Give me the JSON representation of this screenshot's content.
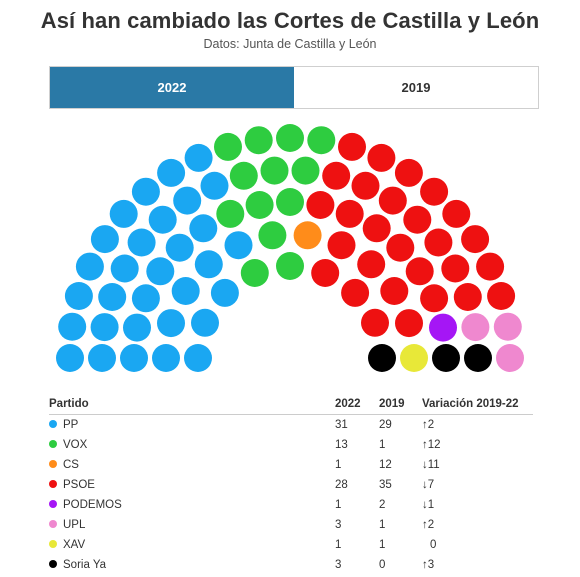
{
  "header": {
    "title": "Así han cambiado las Cortes de Castilla y León",
    "subtitle": "Datos: Junta de Castilla y León"
  },
  "tabs": [
    {
      "label": "2022",
      "active": true
    },
    {
      "label": "2019",
      "active": false
    }
  ],
  "table": {
    "headers": [
      "Partido",
      "2022",
      "2019",
      "Variación 2019-22"
    ],
    "rows": [
      {
        "party": "PP",
        "color": "#1aa7f2",
        "y2022": "31",
        "y2019": "29",
        "change": "↑2",
        "dir": "up"
      },
      {
        "party": "VOX",
        "color": "#2ecc40",
        "y2022": "13",
        "y2019": "1",
        "change": "↑12",
        "dir": "up"
      },
      {
        "party": "CS",
        "color": "#ff8c1a",
        "y2022": "1",
        "y2019": "12",
        "change": "↓11",
        "dir": "down"
      },
      {
        "party": "PSOE",
        "color": "#ee1111",
        "y2022": "28",
        "y2019": "35",
        "change": "↓7",
        "dir": "down"
      },
      {
        "party": "PODEMOS",
        "color": "#a516f5",
        "y2022": "1",
        "y2019": "2",
        "change": "↓1",
        "dir": "down"
      },
      {
        "party": "UPL",
        "color": "#ef88cf",
        "y2022": "3",
        "y2019": "1",
        "change": "↑2",
        "dir": "up"
      },
      {
        "party": "XAV",
        "color": "#e8e838",
        "y2022": "1",
        "y2019": "1",
        "change": "0",
        "dir": "zero"
      },
      {
        "party": "Soria Ya",
        "color": "#000000",
        "y2022": "3",
        "y2019": "0",
        "change": "↑3",
        "dir": "up"
      }
    ]
  },
  "chart_data": {
    "type": "parliament",
    "year": "2022",
    "total_seats": 81,
    "series": [
      {
        "name": "PP",
        "seats": 31,
        "color": "#1aa7f2"
      },
      {
        "name": "VOX",
        "seats": 13,
        "color": "#2ecc40"
      },
      {
        "name": "CS",
        "seats": 1,
        "color": "#ff8c1a"
      },
      {
        "name": "PSOE",
        "seats": 28,
        "color": "#ee1111"
      },
      {
        "name": "PODEMOS",
        "seats": 1,
        "color": "#a516f5"
      },
      {
        "name": "UPL",
        "seats": 3,
        "color": "#ef88cf"
      },
      {
        "name": "XAV",
        "seats": 1,
        "color": "#e8e838"
      },
      {
        "name": "Soria Ya",
        "seats": 3,
        "color": "#000000"
      }
    ]
  }
}
